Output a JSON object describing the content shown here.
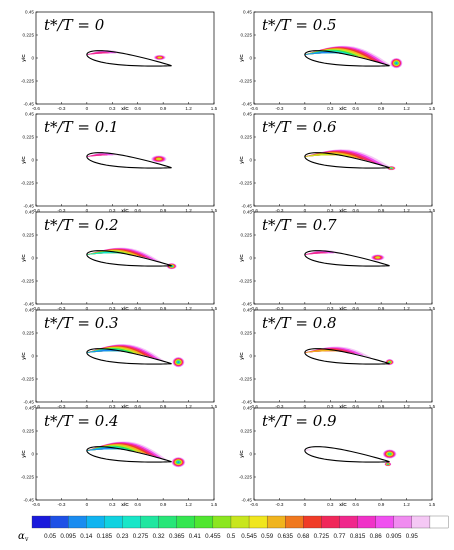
{
  "chart_data": {
    "type": "heatmap",
    "axes": {
      "xlabel": "x/C",
      "ylabel": "y/C",
      "xlim": [
        -0.6,
        1.5
      ],
      "ylim": [
        -0.45,
        0.45
      ],
      "xticks": [
        "-0.6",
        "-0.3",
        "0",
        "0.3",
        "0.6",
        "0.9",
        "1.2",
        "1.5"
      ],
      "yticks": [
        "0.45",
        "0.225",
        "0",
        "-0.225",
        "-0.45"
      ]
    },
    "panels": [
      {
        "label": "t*/T = 0",
        "phase": 0.0
      },
      {
        "label": "t*/T = 0.5",
        "phase": 0.5
      },
      {
        "label": "t*/T = 0.1",
        "phase": 0.1
      },
      {
        "label": "t*/T = 0.6",
        "phase": 0.6
      },
      {
        "label": "t*/T = 0.2",
        "phase": 0.2
      },
      {
        "label": "t*/T = 0.7",
        "phase": 0.7
      },
      {
        "label": "t*/T = 0.3",
        "phase": 0.3
      },
      {
        "label": "t*/T = 0.8",
        "phase": 0.8
      },
      {
        "label": "t*/T = 0.4",
        "phase": 0.4
      },
      {
        "label": "t*/T = 0.9",
        "phase": 0.9
      }
    ],
    "colorbar": {
      "label": "α",
      "levels": [
        "0.05",
        "0.095",
        "0.14",
        "0.185",
        "0.23",
        "0.275",
        "0.32",
        "0.365",
        "0.41",
        "0.455",
        "0.5",
        "0.545",
        "0.59",
        "0.635",
        "0.68",
        "0.725",
        "0.77",
        "0.815",
        "0.86",
        "0.905",
        "0.95"
      ],
      "colors": [
        "#1a1adc",
        "#1e50e6",
        "#1a8cf0",
        "#10b4f0",
        "#10d2e0",
        "#18e6c8",
        "#20e6a0",
        "#28e678",
        "#34e650",
        "#50e630",
        "#8ce620",
        "#c8e61e",
        "#f0e61e",
        "#f0b41e",
        "#f0781e",
        "#f03c28",
        "#f0285a",
        "#f0288c",
        "#f032c8",
        "#f050f0",
        "#f08cf0",
        "#f5c8f5",
        "#ffffff"
      ]
    }
  }
}
